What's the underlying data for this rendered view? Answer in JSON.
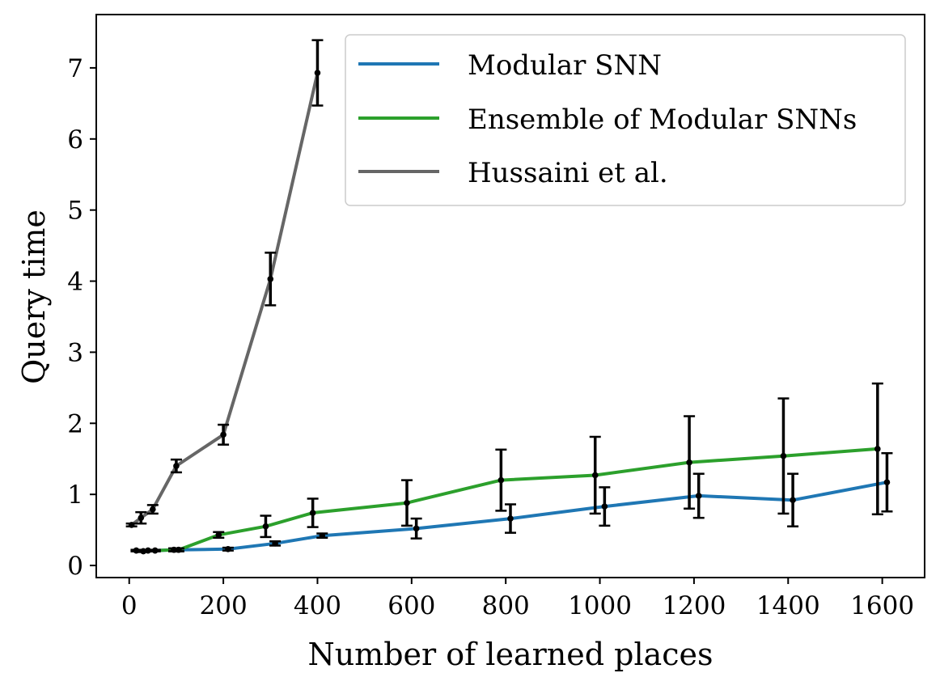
{
  "chart_data": {
    "type": "line",
    "title": "",
    "xlabel": "Number of learned places",
    "ylabel": "Query time",
    "xlim": [
      -70,
      1690
    ],
    "ylim": [
      -0.17,
      7.75
    ],
    "xticks": [
      0,
      200,
      400,
      600,
      800,
      1000,
      1200,
      1400,
      1600
    ],
    "yticks": [
      0,
      1,
      2,
      3,
      4,
      5,
      6,
      7
    ],
    "legend_position": "top-right",
    "series": [
      {
        "name": "Modular SNN",
        "color": "#1f77b4",
        "x": [
          15,
          30,
          40,
          55,
          95,
          105,
          210,
          310,
          410,
          610,
          810,
          1010,
          1210,
          1410,
          1610
        ],
        "y": [
          0.21,
          0.2,
          0.21,
          0.21,
          0.22,
          0.22,
          0.23,
          0.31,
          0.42,
          0.52,
          0.66,
          0.83,
          0.98,
          0.92,
          1.17
        ],
        "yerr": [
          0.01,
          0.01,
          0.01,
          0.01,
          0.02,
          0.02,
          0.02,
          0.03,
          0.03,
          0.14,
          0.2,
          0.27,
          0.31,
          0.37,
          0.41
        ]
      },
      {
        "name": "Ensemble of Modular SNNs",
        "color": "#2ca02c",
        "x": [
          15,
          30,
          40,
          55,
          95,
          105,
          190,
          290,
          390,
          590,
          790,
          990,
          1190,
          1390,
          1590
        ],
        "y": [
          0.21,
          0.2,
          0.21,
          0.21,
          0.22,
          0.22,
          0.43,
          0.55,
          0.74,
          0.88,
          1.2,
          1.27,
          1.45,
          1.54,
          1.64
        ],
        "yerr": [
          0.01,
          0.01,
          0.01,
          0.01,
          0.02,
          0.02,
          0.04,
          0.15,
          0.2,
          0.32,
          0.43,
          0.54,
          0.65,
          0.81,
          0.92
        ]
      },
      {
        "name": "Hussaini et al.",
        "color": "#666666",
        "x": [
          5,
          25,
          50,
          100,
          200,
          300,
          400
        ],
        "y": [
          0.57,
          0.67,
          0.79,
          1.4,
          1.84,
          4.03,
          6.93
        ],
        "yerr": [
          0.02,
          0.08,
          0.06,
          0.09,
          0.14,
          0.37,
          0.46
        ]
      }
    ]
  }
}
